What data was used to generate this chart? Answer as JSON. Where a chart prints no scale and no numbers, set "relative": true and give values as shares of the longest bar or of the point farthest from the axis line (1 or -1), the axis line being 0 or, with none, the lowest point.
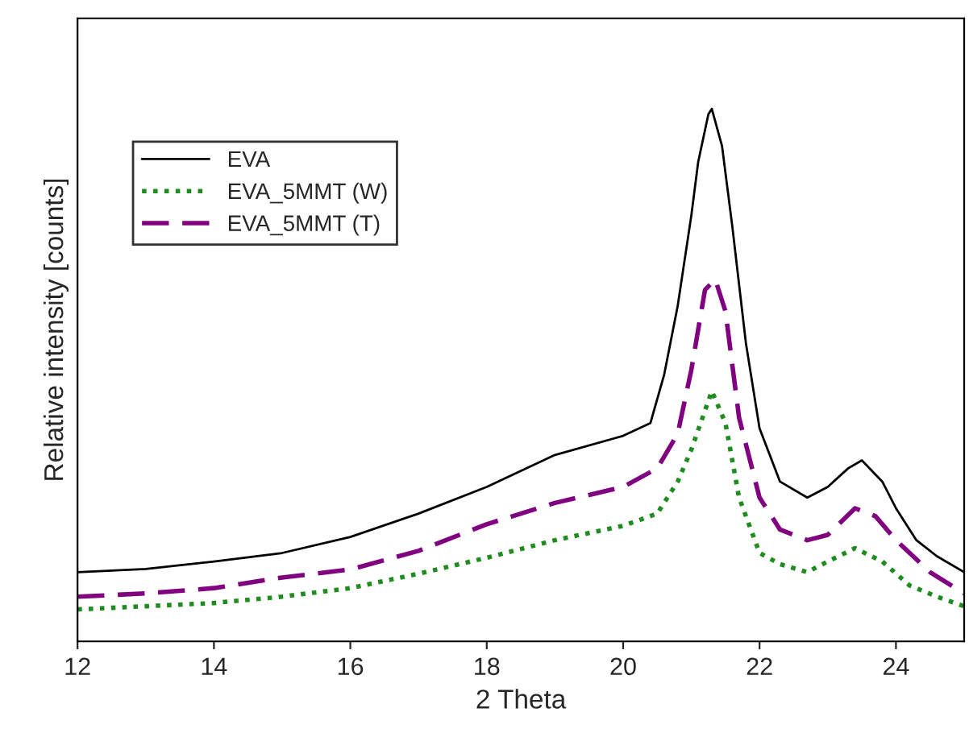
{
  "chart_data": {
    "type": "line",
    "xlabel": "2 Theta",
    "ylabel": "Relative intensity [counts]",
    "relative": true,
    "xlim": [
      12,
      25
    ],
    "xticks": [
      12,
      14,
      16,
      18,
      20,
      22,
      24
    ],
    "tick_labels": "x",
    "legend": "top left",
    "grid": false,
    "series": [
      {
        "name": "EVA",
        "color": "#000000",
        "line_style": "solid",
        "x": [
          12,
          13,
          14,
          15,
          16,
          17,
          18,
          19,
          20,
          20.4,
          20.6,
          20.8,
          21.0,
          21.1,
          21.25,
          21.3,
          21.45,
          21.6,
          21.8,
          22.0,
          22.3,
          22.7,
          23.0,
          23.3,
          23.5,
          23.8,
          24.0,
          24.3,
          24.6,
          25
        ],
        "values": [
          0.13,
          0.136,
          0.15,
          0.166,
          0.196,
          0.24,
          0.29,
          0.35,
          0.386,
          0.41,
          0.5,
          0.63,
          0.8,
          0.9,
          0.99,
          1.0,
          0.93,
          0.78,
          0.56,
          0.4,
          0.3,
          0.27,
          0.29,
          0.325,
          0.34,
          0.3,
          0.25,
          0.19,
          0.16,
          0.13
        ]
      },
      {
        "name": "EVA_5MMT (W)",
        "color": "#1e8c1e",
        "line_style": "dotted",
        "x": [
          12,
          13,
          14,
          15,
          16,
          17,
          18,
          19,
          20,
          20.5,
          20.8,
          21.0,
          21.3,
          21.5,
          21.7,
          22.0,
          22.3,
          22.7,
          23.0,
          23.4,
          23.8,
          24.2,
          24.6,
          25
        ],
        "values": [
          0.06,
          0.066,
          0.072,
          0.084,
          0.1,
          0.127,
          0.157,
          0.19,
          0.217,
          0.24,
          0.3,
          0.36,
          0.47,
          0.41,
          0.27,
          0.166,
          0.145,
          0.13,
          0.15,
          0.175,
          0.15,
          0.105,
          0.084,
          0.066
        ]
      },
      {
        "name": "EVA_5MMT (T)",
        "color": "#800080",
        "line_style": "dashed",
        "x": [
          12,
          13,
          14,
          15,
          16,
          17,
          18,
          19,
          20,
          20.5,
          20.8,
          21.0,
          21.2,
          21.35,
          21.5,
          21.7,
          22.0,
          22.3,
          22.7,
          23.0,
          23.4,
          23.7,
          24.0,
          24.5,
          25
        ],
        "values": [
          0.084,
          0.09,
          0.1,
          0.12,
          0.135,
          0.17,
          0.22,
          0.26,
          0.29,
          0.325,
          0.39,
          0.51,
          0.66,
          0.68,
          0.62,
          0.42,
          0.27,
          0.21,
          0.19,
          0.2,
          0.25,
          0.235,
          0.19,
          0.13,
          0.09
        ]
      }
    ]
  }
}
